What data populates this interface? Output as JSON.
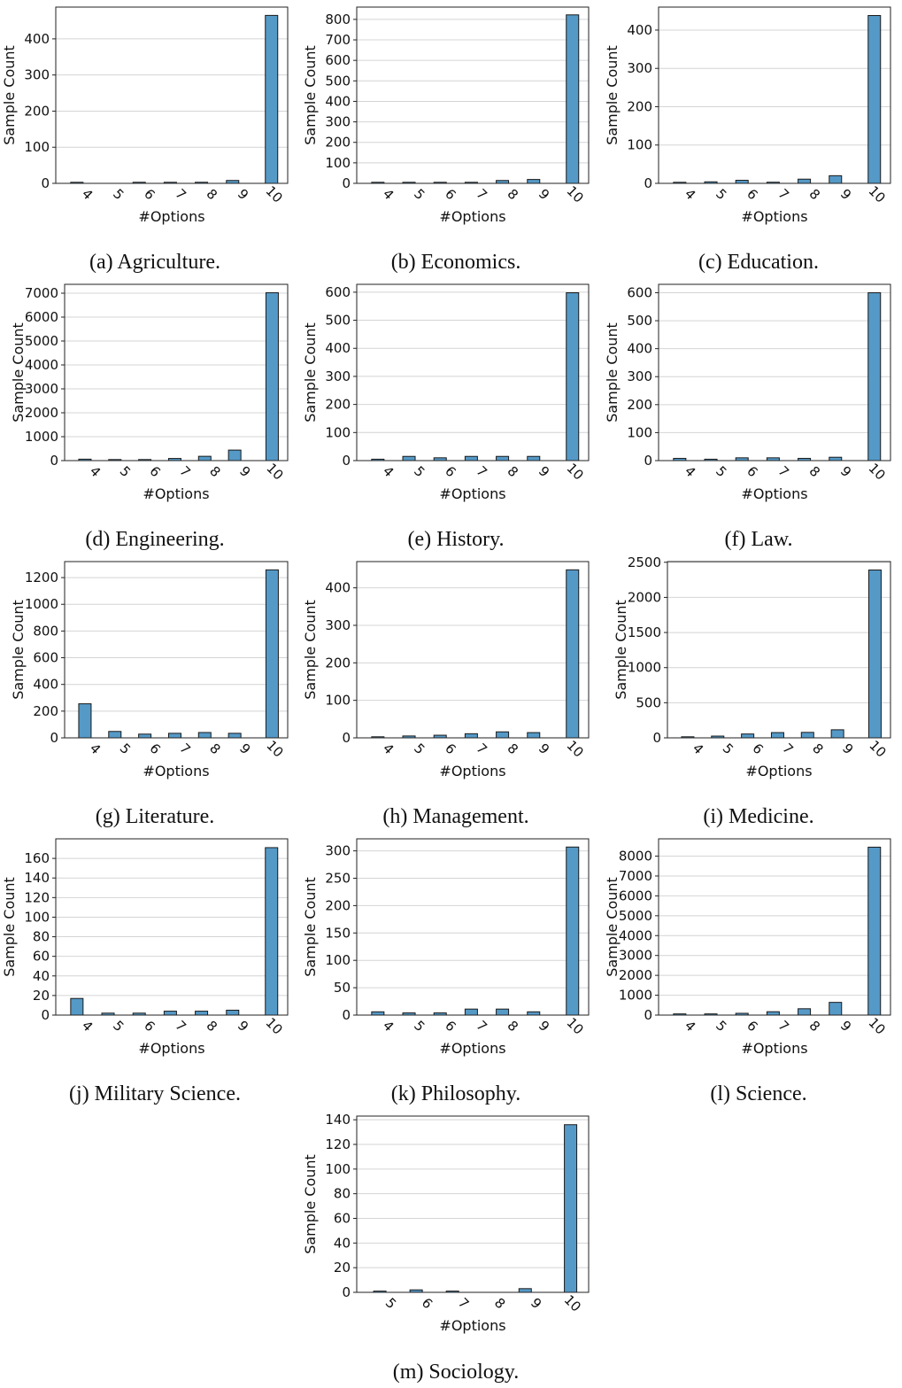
{
  "colors": {
    "bar_fill": "#5599c7",
    "bar_edge": "#1a1a1a",
    "grid": "#d4d4d4",
    "axis": "#222222"
  },
  "chart_data": [
    {
      "type": "bar",
      "caption": "(a) Agriculture.",
      "xlabel": "#Options",
      "ylabel": "Sample Count",
      "categories": [
        "4",
        "5",
        "6",
        "7",
        "8",
        "9",
        "10"
      ],
      "values": [
        2,
        0,
        3,
        2,
        3,
        8,
        465
      ],
      "yticks": [
        0,
        100,
        200,
        300,
        400
      ],
      "ylim": [
        0,
        488
      ]
    },
    {
      "type": "bar",
      "caption": "(b) Economics.",
      "xlabel": "#Options",
      "ylabel": "Sample Count",
      "categories": [
        "4",
        "5",
        "6",
        "7",
        "8",
        "9",
        "10"
      ],
      "values": [
        3,
        2,
        4,
        5,
        14,
        19,
        822
      ],
      "yticks": [
        0,
        100,
        200,
        300,
        400,
        500,
        600,
        700,
        800
      ],
      "ylim": [
        0,
        860
      ]
    },
    {
      "type": "bar",
      "caption": "(c) Education.",
      "xlabel": "#Options",
      "ylabel": "Sample Count",
      "categories": [
        "4",
        "5",
        "6",
        "7",
        "8",
        "9",
        "10"
      ],
      "values": [
        1,
        4,
        8,
        3,
        11,
        20,
        438
      ],
      "yticks": [
        0,
        100,
        200,
        300,
        400
      ],
      "ylim": [
        0,
        460
      ]
    },
    {
      "type": "bar",
      "caption": "(d) Engineering.",
      "xlabel": "#Options",
      "ylabel": "Sample Count",
      "categories": [
        "4",
        "5",
        "6",
        "7",
        "8",
        "9",
        "10"
      ],
      "values": [
        60,
        30,
        40,
        90,
        180,
        440,
        7020
      ],
      "yticks": [
        0,
        1000,
        2000,
        3000,
        4000,
        5000,
        6000,
        7000
      ],
      "ylim": [
        0,
        7370
      ]
    },
    {
      "type": "bar",
      "caption": "(e) History.",
      "xlabel": "#Options",
      "ylabel": "Sample Count",
      "categories": [
        "4",
        "5",
        "6",
        "7",
        "8",
        "9",
        "10"
      ],
      "values": [
        5,
        15,
        10,
        15,
        15,
        15,
        598
      ],
      "yticks": [
        0,
        100,
        200,
        300,
        400,
        500,
        600
      ],
      "ylim": [
        0,
        628
      ]
    },
    {
      "type": "bar",
      "caption": "(f) Law.",
      "xlabel": "#Options",
      "ylabel": "Sample Count",
      "categories": [
        "4",
        "5",
        "6",
        "7",
        "8",
        "9",
        "10"
      ],
      "values": [
        8,
        5,
        10,
        10,
        8,
        12,
        600
      ],
      "yticks": [
        0,
        100,
        200,
        300,
        400,
        500,
        600
      ],
      "ylim": [
        0,
        630
      ]
    },
    {
      "type": "bar",
      "caption": "(g) Literature.",
      "xlabel": "#Options",
      "ylabel": "Sample Count",
      "categories": [
        "4",
        "5",
        "6",
        "7",
        "8",
        "9",
        "10"
      ],
      "values": [
        255,
        48,
        28,
        34,
        40,
        34,
        1258
      ],
      "yticks": [
        0,
        200,
        400,
        600,
        800,
        1000,
        1200
      ],
      "ylim": [
        0,
        1320
      ]
    },
    {
      "type": "bar",
      "caption": "(h) Management.",
      "xlabel": "#Options",
      "ylabel": "Sample Count",
      "categories": [
        "4",
        "5",
        "6",
        "7",
        "8",
        "9",
        "10"
      ],
      "values": [
        1,
        5,
        7,
        11,
        16,
        14,
        448
      ],
      "yticks": [
        0,
        100,
        200,
        300,
        400
      ],
      "ylim": [
        0,
        470
      ]
    },
    {
      "type": "bar",
      "caption": "(i) Medicine.",
      "xlabel": "#Options",
      "ylabel": "Sample Count",
      "categories": [
        "4",
        "5",
        "6",
        "7",
        "8",
        "9",
        "10"
      ],
      "values": [
        10,
        25,
        55,
        75,
        78,
        115,
        2390
      ],
      "yticks": [
        0,
        500,
        1000,
        1500,
        2000,
        2500
      ],
      "ylim": [
        0,
        2510
      ]
    },
    {
      "type": "bar",
      "caption": "(j) Military Science.",
      "xlabel": "#Options",
      "ylabel": "Sample Count",
      "categories": [
        "4",
        "5",
        "6",
        "7",
        "8",
        "9",
        "10"
      ],
      "values": [
        17,
        2,
        2,
        4,
        4,
        5,
        171
      ],
      "yticks": [
        0,
        20,
        40,
        60,
        80,
        100,
        120,
        140,
        160
      ],
      "ylim": [
        0,
        180
      ]
    },
    {
      "type": "bar",
      "caption": "(k) Philosophy.",
      "xlabel": "#Options",
      "ylabel": "Sample Count",
      "categories": [
        "4",
        "5",
        "6",
        "7",
        "8",
        "9",
        "10"
      ],
      "values": [
        6,
        4,
        4,
        11,
        11,
        6,
        307
      ],
      "yticks": [
        0,
        50,
        100,
        150,
        200,
        250,
        300
      ],
      "ylim": [
        0,
        322
      ]
    },
    {
      "type": "bar",
      "caption": "(l) Science.",
      "xlabel": "#Options",
      "ylabel": "Sample Count",
      "categories": [
        "4",
        "5",
        "6",
        "7",
        "8",
        "9",
        "10"
      ],
      "values": [
        60,
        60,
        90,
        170,
        320,
        640,
        8450
      ],
      "yticks": [
        0,
        1000,
        2000,
        3000,
        4000,
        5000,
        6000,
        7000,
        8000
      ],
      "ylim": [
        0,
        8870
      ]
    },
    {
      "type": "bar",
      "caption": "(m) Sociology.",
      "xlabel": "#Options",
      "ylabel": "Sample Count",
      "categories": [
        "5",
        "6",
        "7",
        "8",
        "9",
        "10"
      ],
      "values": [
        1,
        2,
        1,
        0,
        3,
        136
      ],
      "yticks": [
        0,
        20,
        40,
        60,
        80,
        100,
        120,
        140
      ],
      "ylim": [
        0,
        143
      ]
    }
  ]
}
